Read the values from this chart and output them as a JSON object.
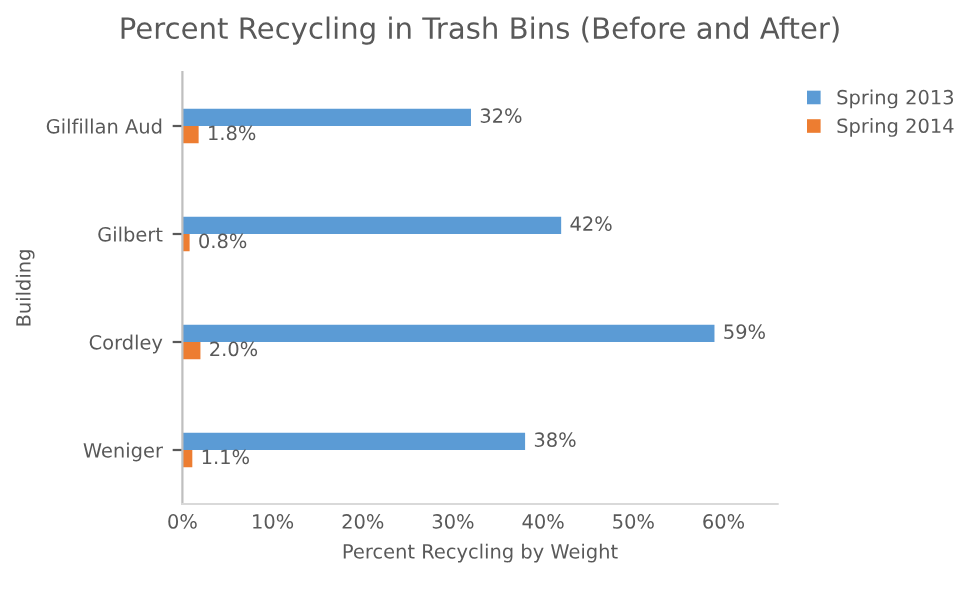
{
  "chart_data": {
    "type": "bar",
    "orientation": "horizontal",
    "title": "Percent Recycling in Trash Bins (Before and After)",
    "xlabel": "Percent Recycling by Weight",
    "ylabel": "Building",
    "categories": [
      "Gilfillan Aud",
      "Gilbert",
      "Cordley",
      "Weniger"
    ],
    "series": [
      {
        "name": "Spring 2013",
        "color": "#5b9bd5",
        "values": [
          32,
          42,
          59,
          38
        ],
        "value_labels": [
          "32%",
          "42%",
          "59%",
          "38%"
        ]
      },
      {
        "name": "Spring 2014",
        "color": "#ed7d31",
        "values": [
          1.8,
          0.8,
          2.0,
          1.1
        ],
        "value_labels": [
          "1.8%",
          "0.8%",
          "2.0%",
          "1.1%"
        ]
      }
    ],
    "xlim": [
      0,
      66
    ],
    "xticks": [
      {
        "value": 0,
        "label": "0%"
      },
      {
        "value": 10,
        "label": "10%"
      },
      {
        "value": 20,
        "label": "20%"
      },
      {
        "value": 30,
        "label": "30%"
      },
      {
        "value": 40,
        "label": "40%"
      },
      {
        "value": 50,
        "label": "50%"
      },
      {
        "value": 60,
        "label": "60%"
      }
    ],
    "grid": false,
    "legend": "top right"
  }
}
